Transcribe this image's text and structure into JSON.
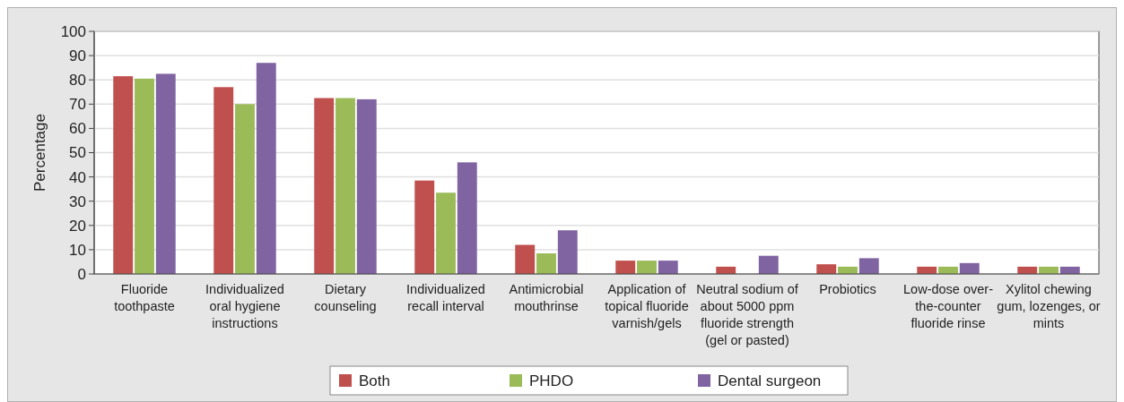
{
  "chart_data": {
    "type": "bar",
    "ylabel": "Percentage",
    "categories": [
      "Fluoride toothpaste",
      "Individualized oral hygiene instructions",
      "Dietary counseling",
      "Individualized recall interval",
      "Antimicrobial mouthrinse",
      "Application of topical fluoride varnish/gels",
      "Neutral sodium of about 5000 ppm fluoride strength (gel or pasted)",
      "Probiotics",
      "Low-dose over-the-counter fluoride rinse",
      "Xylitol chewing gum, lozenges, or mints"
    ],
    "series": [
      {
        "name": "Both",
        "color": "#c0504d",
        "values": [
          81.5,
          77,
          72.5,
          38.5,
          12,
          5.5,
          3,
          4,
          3,
          3
        ]
      },
      {
        "name": "PHDO",
        "color": "#9bbb59",
        "values": [
          80.5,
          70,
          72.5,
          33.5,
          8.5,
          5.5,
          0,
          3,
          3,
          3
        ]
      },
      {
        "name": "Dental surgeon",
        "color": "#8064a2",
        "values": [
          82.5,
          87,
          72,
          46,
          18,
          5.5,
          7.5,
          6.5,
          4.5,
          3
        ]
      }
    ],
    "ylim": [
      0,
      100
    ],
    "yticks": [
      0,
      10,
      20,
      30,
      40,
      50,
      60,
      70,
      80,
      90,
      100
    ],
    "grid": "y",
    "legend": "bottom"
  }
}
